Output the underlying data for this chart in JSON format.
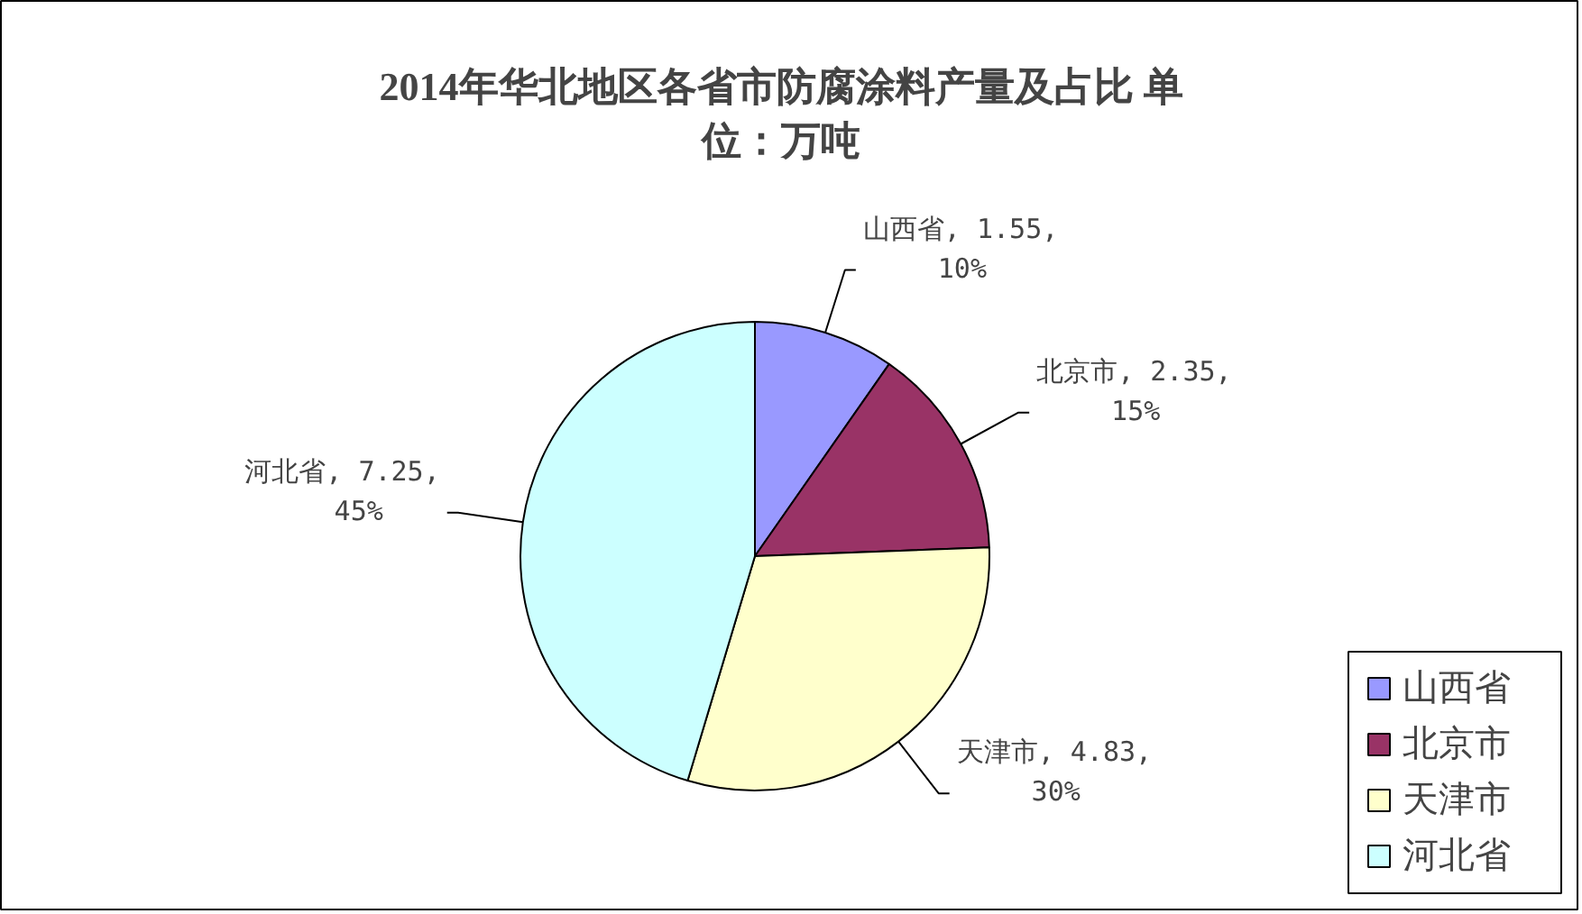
{
  "chart_data": {
    "type": "pie",
    "title": "2014年华北地区各省市防腐涂料产量及占比 单位：万吨",
    "categories": [
      "山西省",
      "北京市",
      "天津市",
      "河北省"
    ],
    "values": [
      1.55,
      2.35,
      4.83,
      7.25
    ],
    "colors": [
      "#9999ff",
      "#993366",
      "#ffffcc",
      "#ccffff"
    ],
    "value_labels": [
      "山西省, 1.55, 10%",
      "北京市, 2.35, 15%",
      "天津市, 4.83, 30%",
      "河北省, 7.25, 45%"
    ],
    "legend": "bottom right"
  }
}
